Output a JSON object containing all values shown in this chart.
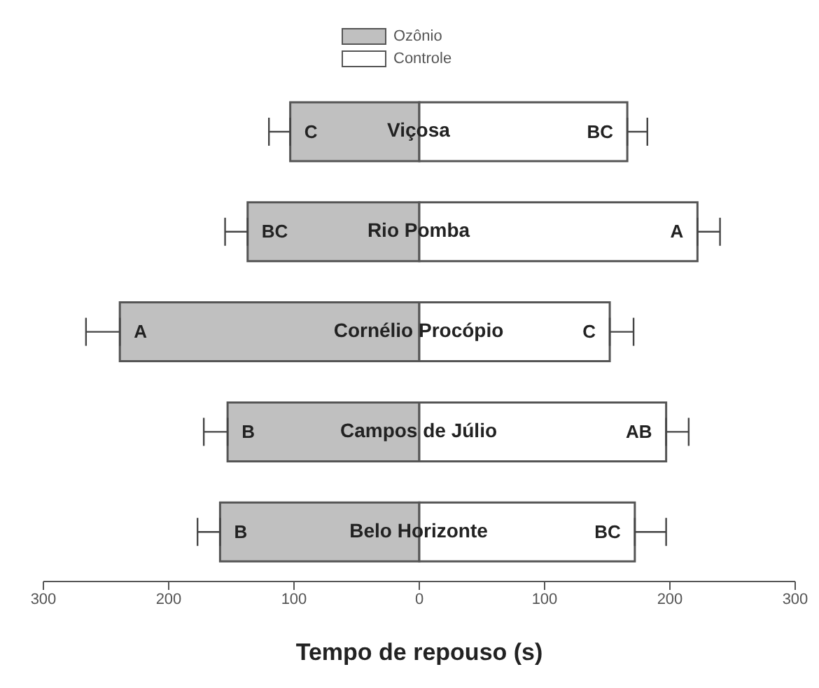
{
  "chart_data": {
    "type": "bar",
    "orientation": "horizontal",
    "stacked": true,
    "xlabel": "Tempo de repouso (s)",
    "categories": [
      "Viçosa",
      "Rio Pomba",
      "Cornélio Procópio",
      "Campos de Júlio",
      "Belo Horizonte"
    ],
    "series": [
      {
        "name": "Ozônio",
        "color": "#c0c0c0",
        "values": [
          -103,
          -137,
          -239,
          -153,
          -159
        ],
        "errors": [
          17,
          18,
          27,
          19,
          18
        ]
      },
      {
        "name": "Controle",
        "color": "#ffffff",
        "values": [
          166,
          222,
          152,
          197,
          172
        ],
        "errors": [
          16,
          18,
          19,
          18,
          25
        ]
      }
    ],
    "xlim": [
      -300,
      300
    ],
    "xticks": [
      {
        "value": -300,
        "label": "300"
      },
      {
        "value": -200,
        "label": "200"
      },
      {
        "value": -100,
        "label": "100"
      },
      0,
      100,
      200,
      300
    ],
    "legend": "top",
    "grid": false,
    "annotations": [
      {
        "text": "C",
        "x": -103,
        "y": "Viçosa"
      },
      {
        "text": "BC",
        "x": 166,
        "y": "Viçosa"
      },
      {
        "text": "BC",
        "x": -137,
        "y": "Rio Pomba"
      },
      {
        "text": "A",
        "x": 222,
        "y": "Rio Pomba"
      },
      {
        "text": "A",
        "x": -239,
        "y": "Cornélio Procópio"
      },
      {
        "text": "C",
        "x": 152,
        "y": "Cornélio Procópio"
      },
      {
        "text": "B",
        "x": -153,
        "y": "Campos de Júlio"
      },
      {
        "text": "AB",
        "x": 197,
        "y": "Campos de Júlio"
      },
      {
        "text": "B",
        "x": -159,
        "y": "Belo Horizonte"
      },
      {
        "text": "BC",
        "x": 172,
        "y": "Belo Horizonte"
      }
    ]
  }
}
